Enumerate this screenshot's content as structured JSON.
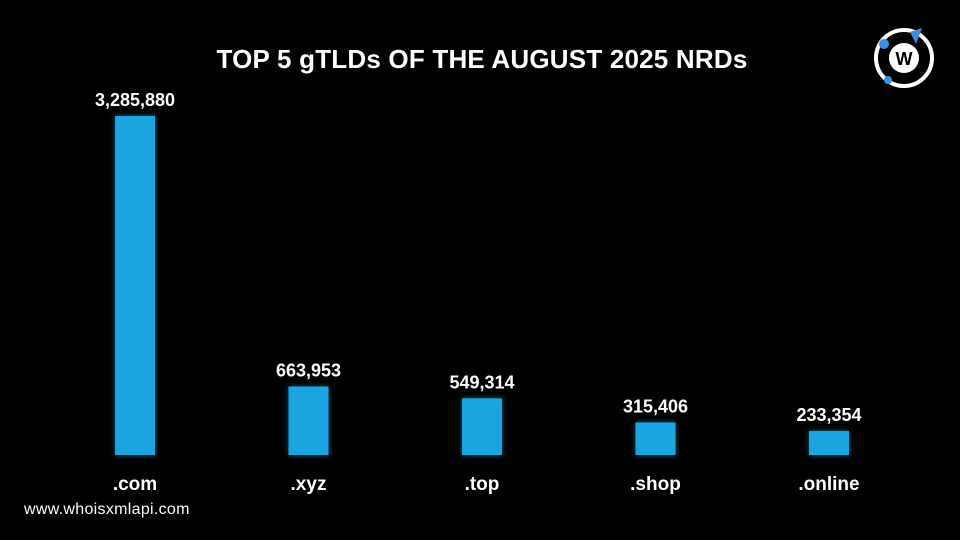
{
  "header": {
    "title": "TOP 5 gTLDs OF THE AUGUST 2025 NRDs"
  },
  "footer": {
    "url": "www.whoisxmlapi.com"
  },
  "brand": {
    "logo_letter": "W",
    "logo_icon": "whoisxmlapi-logo-icon"
  },
  "colors": {
    "background": "#000000",
    "bar": "#1ba5e0",
    "text": "#ffffff",
    "logo_accent": "#3b8fe0"
  },
  "chart_data": {
    "type": "bar",
    "title": "TOP 5 gTLDs OF THE AUGUST 2025 NRDs",
    "categories": [
      ".com",
      ".xyz",
      ".top",
      ".shop",
      ".online"
    ],
    "values": [
      3285880,
      663953,
      549314,
      315406,
      233354
    ],
    "value_labels": [
      "3,285,880",
      "663,953",
      "549,314",
      "315,406",
      "233,354"
    ],
    "xlabel": "",
    "ylabel": "",
    "grid": false,
    "legend": "none"
  }
}
